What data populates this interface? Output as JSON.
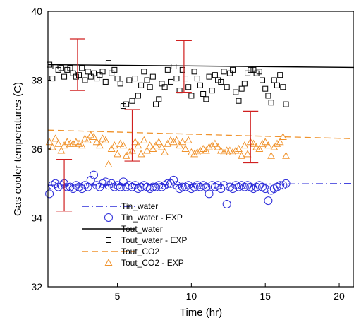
{
  "chart_data": {
    "type": "line",
    "xlabel": "Time (hr)",
    "ylabel": "Gas cooler temperatures (C)",
    "xlim": [
      0.3,
      21
    ],
    "ylim": [
      32,
      40
    ],
    "xticks": [
      5,
      10,
      15,
      20
    ],
    "yticks": [
      32,
      34,
      36,
      38,
      40
    ],
    "grid": false,
    "legend_position": "bottom-left",
    "series": [
      {
        "name": "Tin_water",
        "kind": "line",
        "style": "dashdot",
        "color": "#2b2bd9",
        "x": [
          0.3,
          21
        ],
        "y": [
          34.95,
          35.0
        ]
      },
      {
        "name": "Tin_water - EXP",
        "kind": "scatter",
        "marker": "circle",
        "color": "#2b2bd9",
        "x": [
          0.4,
          0.6,
          0.8,
          1.0,
          1.2,
          1.4,
          1.6,
          1.8,
          2.0,
          2.2,
          2.4,
          2.6,
          2.8,
          3.0,
          3.2,
          3.4,
          3.6,
          3.8,
          4.0,
          4.2,
          4.4,
          4.6,
          4.8,
          5.0,
          5.2,
          5.4,
          5.6,
          5.8,
          6.0,
          6.2,
          6.4,
          6.6,
          6.8,
          7.0,
          7.2,
          7.4,
          7.6,
          7.8,
          8.0,
          8.2,
          8.4,
          8.6,
          8.8,
          9.0,
          9.2,
          9.4,
          9.6,
          9.8,
          10.0,
          10.2,
          10.4,
          10.6,
          10.8,
          11.0,
          11.2,
          11.4,
          11.6,
          11.8,
          12.0,
          12.2,
          12.4,
          12.6,
          12.8,
          13.0,
          13.2,
          13.4,
          13.6,
          13.8,
          14.0,
          14.2,
          14.4,
          14.6,
          14.8,
          15.0,
          15.2,
          15.4,
          15.6,
          15.8,
          16.0,
          16.2,
          16.4
        ],
        "y": [
          34.7,
          34.95,
          35.0,
          34.9,
          34.95,
          35.0,
          34.9,
          34.9,
          34.85,
          34.95,
          34.9,
          34.85,
          34.95,
          34.9,
          35.1,
          35.25,
          34.95,
          34.9,
          35.0,
          35.05,
          34.95,
          35.0,
          34.9,
          34.95,
          34.9,
          35.05,
          34.9,
          34.95,
          34.9,
          34.95,
          34.85,
          34.9,
          34.95,
          34.9,
          34.85,
          34.9,
          34.9,
          34.95,
          34.9,
          34.95,
          35.0,
          35.0,
          35.1,
          34.95,
          34.85,
          34.9,
          34.9,
          34.95,
          34.85,
          34.9,
          34.95,
          34.9,
          34.95,
          34.9,
          34.7,
          34.95,
          34.9,
          34.95,
          34.85,
          34.95,
          34.4,
          34.9,
          34.85,
          34.95,
          34.9,
          34.95,
          34.9,
          34.95,
          34.9,
          34.85,
          34.9,
          34.95,
          34.9,
          34.85,
          34.5,
          34.8,
          34.85,
          34.9,
          34.95,
          34.95,
          35.0
        ]
      },
      {
        "name": "Tout_water",
        "kind": "line",
        "style": "solid",
        "color": "#000000",
        "x": [
          0.3,
          21
        ],
        "y": [
          38.45,
          38.37
        ]
      },
      {
        "name": "Tout_water - EXP",
        "kind": "scatter",
        "marker": "square",
        "color": "#000000",
        "x": [
          0.4,
          0.6,
          0.8,
          1.0,
          1.2,
          1.4,
          1.6,
          1.8,
          2.0,
          2.2,
          2.4,
          2.6,
          2.8,
          3.0,
          3.2,
          3.4,
          3.6,
          3.8,
          4.0,
          4.2,
          4.4,
          4.6,
          4.8,
          5.0,
          5.2,
          5.4,
          5.6,
          5.8,
          6.0,
          6.2,
          6.4,
          6.6,
          6.8,
          7.0,
          7.2,
          7.4,
          7.6,
          7.8,
          8.0,
          8.2,
          8.4,
          8.6,
          8.8,
          9.0,
          9.2,
          9.4,
          9.6,
          9.8,
          10.0,
          10.2,
          10.4,
          10.6,
          10.8,
          11.0,
          11.2,
          11.4,
          11.6,
          11.8,
          12.0,
          12.2,
          12.4,
          12.6,
          12.8,
          13.0,
          13.2,
          13.4,
          13.6,
          13.8,
          14.0,
          14.2,
          14.4,
          14.6,
          14.8,
          15.0,
          15.2,
          15.4,
          15.6,
          15.8,
          16.0,
          16.2,
          16.4
        ],
        "y": [
          38.45,
          38.05,
          38.4,
          38.3,
          38.35,
          38.1,
          38.3,
          38.35,
          38.2,
          38.1,
          38.15,
          38.35,
          38.0,
          38.25,
          38.1,
          38.2,
          38.05,
          38.15,
          38.25,
          37.95,
          38.5,
          38.2,
          38.3,
          38.05,
          37.9,
          37.25,
          37.3,
          38.0,
          37.4,
          38.05,
          37.55,
          37.85,
          38.25,
          38.0,
          37.8,
          38.1,
          37.3,
          37.45,
          37.9,
          37.8,
          38.3,
          37.95,
          38.4,
          38.05,
          37.7,
          38.3,
          38.05,
          37.8,
          37.55,
          38.25,
          38.05,
          37.85,
          37.6,
          37.45,
          38.1,
          37.7,
          38.15,
          38.0,
          37.95,
          38.25,
          37.8,
          38.2,
          38.3,
          37.65,
          37.4,
          37.75,
          37.9,
          38.2,
          38.3,
          38.3,
          38.2,
          38.25,
          38.0,
          37.75,
          37.55,
          37.35,
          38.0,
          37.85,
          38.15,
          37.8,
          37.3
        ]
      },
      {
        "name": "Tout_CO2",
        "kind": "line",
        "style": "dashed",
        "color": "#f0922b",
        "x": [
          0.3,
          21
        ],
        "y": [
          36.55,
          36.3
        ]
      },
      {
        "name": "Tout_CO2 - EXP",
        "kind": "scatter",
        "marker": "triangle",
        "color": "#f0922b",
        "x": [
          0.4,
          0.6,
          0.8,
          1.0,
          1.2,
          1.4,
          1.6,
          1.8,
          2.0,
          2.2,
          2.4,
          2.6,
          2.8,
          3.0,
          3.2,
          3.4,
          3.6,
          3.8,
          4.0,
          4.2,
          4.4,
          4.6,
          4.8,
          5.0,
          5.2,
          5.4,
          5.6,
          5.8,
          6.0,
          6.2,
          6.4,
          6.6,
          6.8,
          7.0,
          7.2,
          7.4,
          7.6,
          7.8,
          8.0,
          8.2,
          8.4,
          8.6,
          8.8,
          9.0,
          9.2,
          9.4,
          9.6,
          9.8,
          10.0,
          10.2,
          10.4,
          10.6,
          10.8,
          11.0,
          11.2,
          11.4,
          11.6,
          11.8,
          12.0,
          12.2,
          12.4,
          12.6,
          12.8,
          13.0,
          13.2,
          13.4,
          13.6,
          13.8,
          14.0,
          14.2,
          14.4,
          14.6,
          14.8,
          15.0,
          15.2,
          15.4,
          15.6,
          15.8,
          16.0,
          16.2,
          16.4
        ],
        "y": [
          36.2,
          36.05,
          36.3,
          36.15,
          35.95,
          36.1,
          36.2,
          36.15,
          36.15,
          36.2,
          36.15,
          36.1,
          36.3,
          36.25,
          36.4,
          36.35,
          36.2,
          36.1,
          36.3,
          36.25,
          35.55,
          36.0,
          36.1,
          35.85,
          36.15,
          36.1,
          35.8,
          35.9,
          35.95,
          36.2,
          36.1,
          35.85,
          36.25,
          35.95,
          36.1,
          36.0,
          36.1,
          36.2,
          36.05,
          35.9,
          36.15,
          36.25,
          36.2,
          36.25,
          36.1,
          36.2,
          36.0,
          36.25,
          35.9,
          35.85,
          35.9,
          35.95,
          36.0,
          35.95,
          36.05,
          36.1,
          36.15,
          36.05,
          35.95,
          35.9,
          35.95,
          35.95,
          35.9,
          35.95,
          36.0,
          35.8,
          36.1,
          35.85,
          36.2,
          36.15,
          36.05,
          36.0,
          36.15,
          36.2,
          36.1,
          35.8,
          36.05,
          36.15,
          36.2,
          36.35,
          35.8
        ]
      }
    ],
    "error_bars": {
      "color": "#d02020",
      "items": [
        {
          "x": 2.3,
          "center": 38.45,
          "low": 37.7,
          "high": 39.2
        },
        {
          "x": 6.0,
          "center": 36.4,
          "low": 35.65,
          "high": 37.15
        },
        {
          "x": 9.5,
          "center": 38.4,
          "low": 37.65,
          "high": 39.15
        },
        {
          "x": 14.0,
          "center": 36.35,
          "low": 35.6,
          "high": 37.1
        },
        {
          "x": 1.4,
          "center": 34.95,
          "low": 34.2,
          "high": 35.7
        }
      ]
    }
  }
}
